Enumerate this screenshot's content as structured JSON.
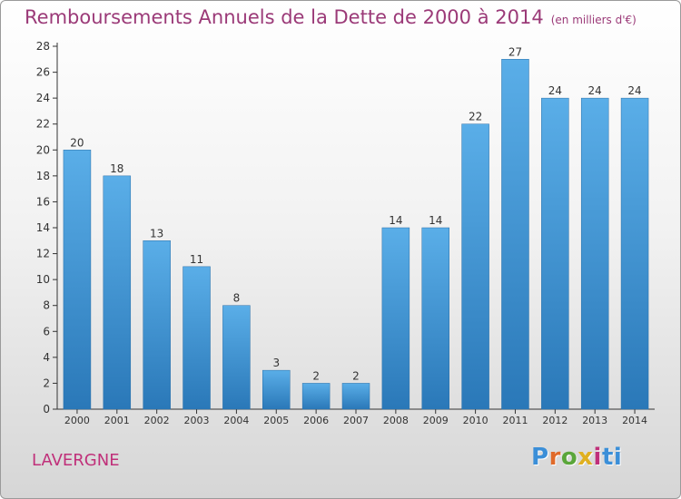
{
  "chart_data": {
    "type": "bar",
    "title": "Remboursements Annuels de la Dette de 2000 à 2014",
    "unit_label": "(en milliers d'€)",
    "xlabel": "",
    "ylabel": "",
    "categories": [
      "2000",
      "2001",
      "2002",
      "2003",
      "2004",
      "2005",
      "2006",
      "2007",
      "2008",
      "2009",
      "2010",
      "2011",
      "2012",
      "2013",
      "2014"
    ],
    "values": [
      20,
      18,
      13,
      11,
      8,
      3,
      2,
      2,
      14,
      14,
      22,
      27,
      24,
      24,
      24
    ],
    "ylim": [
      0,
      28
    ],
    "yticks": [
      0,
      2,
      4,
      6,
      8,
      10,
      12,
      14,
      16,
      18,
      20,
      22,
      24,
      26,
      28
    ],
    "grid": false,
    "legend": "none",
    "bar_color_top": "#5aaee8",
    "bar_color_bottom": "#2a78b8"
  },
  "footer": {
    "place_name": "LAVERGNE",
    "logo_text": "Proxiti"
  }
}
